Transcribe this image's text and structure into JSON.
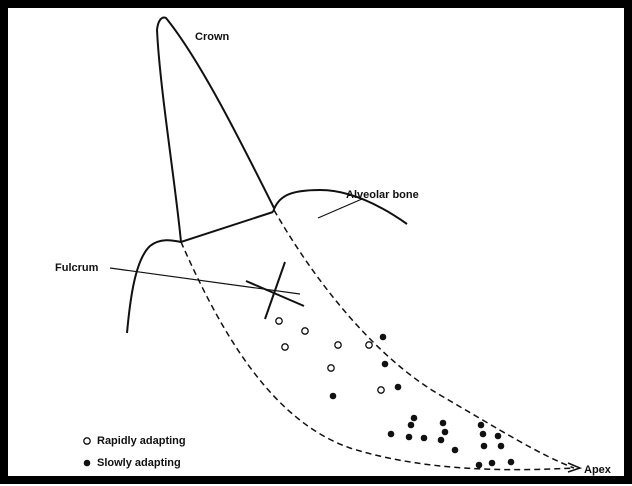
{
  "labels": {
    "crown": "Crown",
    "alveolar_bone": "Alveolar bone",
    "fulcrum": "Fulcrum",
    "apex": "Apex"
  },
  "legend": {
    "rapid": "Rapidly adapting",
    "slow": "Slowly adapting"
  }
}
